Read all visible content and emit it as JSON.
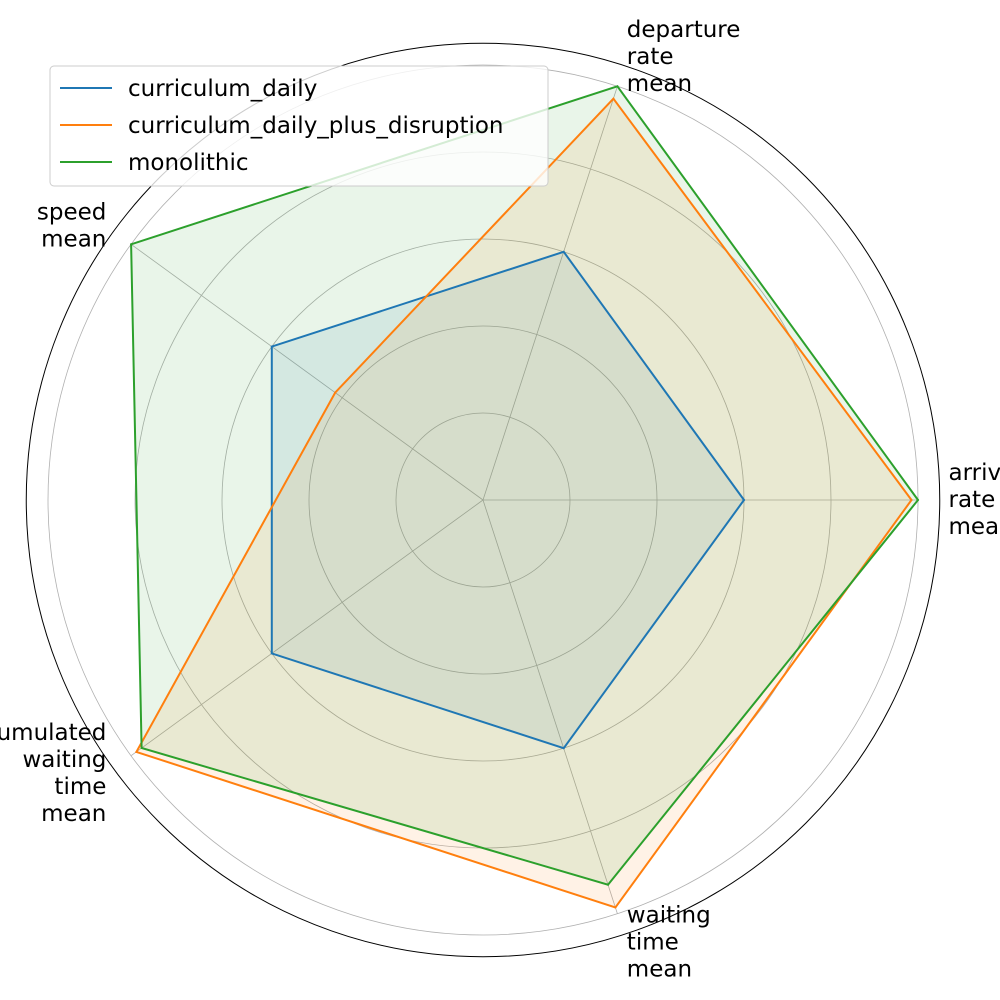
{
  "chart_data": {
    "type": "radar",
    "categories": [
      "arrival\nrate\nmean",
      "departure\nrate\nmean",
      "speed\nmean",
      "accumulated\nwaiting\ntime\nmean",
      "waiting\ntime\nmean"
    ],
    "rlim": [
      0,
      1
    ],
    "grid_rings": [
      0.2,
      0.4,
      0.6,
      0.8,
      1.0
    ],
    "grid": true,
    "legend_position": "top-left",
    "series": [
      {
        "name": "curriculum_daily",
        "color": "#1f77b4",
        "values": [
          0.6,
          0.6,
          0.6,
          0.6,
          0.6
        ],
        "fill_opacity": 0.1
      },
      {
        "name": "curriculum_daily_plus_disruption",
        "color": "#ff7f0e",
        "values": [
          0.985,
          0.97,
          0.42,
          0.985,
          0.985
        ],
        "fill_opacity": 0.1
      },
      {
        "name": "monolithic",
        "color": "#2ca02c",
        "values": [
          1.0,
          1.0,
          1.0,
          0.97,
          0.93
        ],
        "fill_opacity": 0.1
      }
    ]
  }
}
